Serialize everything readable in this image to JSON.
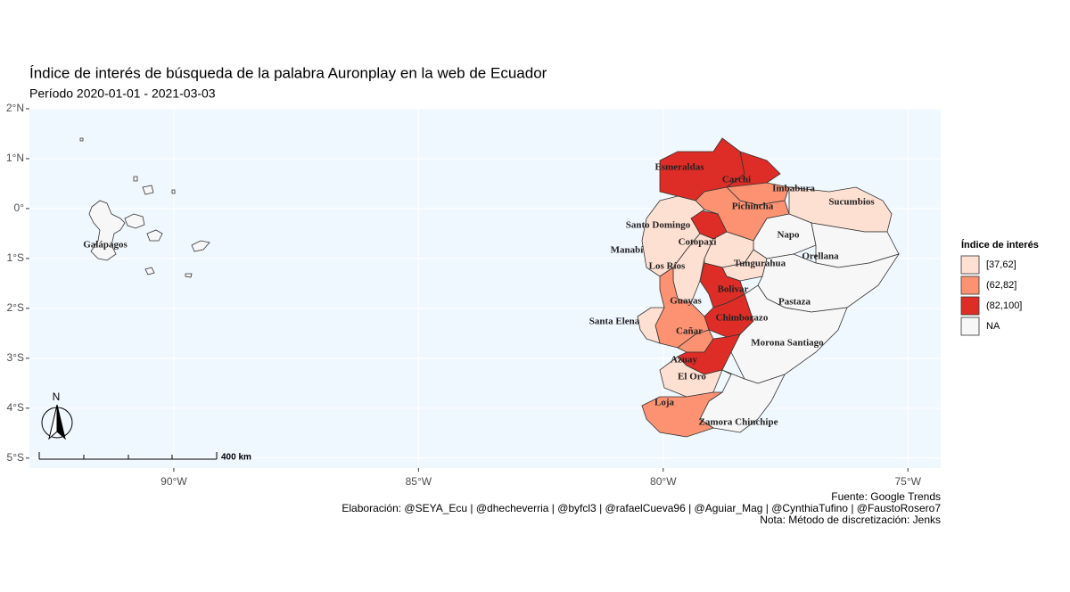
{
  "map": {
    "type": "choropleth",
    "title": "Índice de interés de búsqueda de la palabra Auronplay en la web de Ecuador",
    "subtitle": "Período 2020-01-01 - 2021-03-03",
    "xlim": [
      -92.95,
      -74.33
    ],
    "ylim": [
      -5.2,
      2.0
    ],
    "xticks": [
      {
        "value": -90,
        "label": "90°W"
      },
      {
        "value": -85,
        "label": "85°W"
      },
      {
        "value": -80,
        "label": "80°W"
      },
      {
        "value": -75,
        "label": "75°W"
      }
    ],
    "yticks": [
      {
        "value": 2,
        "label": "2°N"
      },
      {
        "value": 1,
        "label": "1°N"
      },
      {
        "value": 0,
        "label": "0°"
      },
      {
        "value": -1,
        "label": "1°S"
      },
      {
        "value": -2,
        "label": "2°S"
      },
      {
        "value": -3,
        "label": "3°S"
      },
      {
        "value": -4,
        "label": "4°S"
      },
      {
        "value": -5,
        "label": "5°S"
      }
    ],
    "grid": true,
    "legend": {
      "title": "Índice de interés",
      "items": [
        {
          "label": "[37,62]",
          "color": "#fee0d2"
        },
        {
          "label": "(62,82]",
          "color": "#fc9272"
        },
        {
          "label": "(82,100]",
          "color": "#de2d26"
        },
        {
          "label": "NA",
          "color": "#f7f7f7"
        }
      ]
    },
    "provinces": [
      {
        "name": "Galápagos",
        "color": "#f7f7f7"
      },
      {
        "name": "Esmeraldas",
        "color": "#de2d26"
      },
      {
        "name": "Carchi",
        "color": "#de2d26"
      },
      {
        "name": "Imbabura",
        "color": "#fc9272"
      },
      {
        "name": "Pichincha",
        "color": "#fc9272"
      },
      {
        "name": "Santo Domingo",
        "color": "#de2d26"
      },
      {
        "name": "Sucumbios",
        "color": "#fee0d2"
      },
      {
        "name": "Napo",
        "color": "#f7f7f7"
      },
      {
        "name": "Orellana",
        "color": "#f7f7f7"
      },
      {
        "name": "Manabí",
        "color": "#fee0d2"
      },
      {
        "name": "Los Ríos",
        "color": "#fee0d2"
      },
      {
        "name": "Cotopaxi",
        "color": "#fee0d2"
      },
      {
        "name": "Tungurahua",
        "color": "#fee0d2"
      },
      {
        "name": "Pastaza",
        "color": "#f7f7f7"
      },
      {
        "name": "Bolivar",
        "color": "#de2d26"
      },
      {
        "name": "Chimborazo",
        "color": "#de2d26"
      },
      {
        "name": "Guayas",
        "color": "#fc9272"
      },
      {
        "name": "Santa Elena",
        "color": "#fee0d2"
      },
      {
        "name": "Cañar",
        "color": "#fc9272"
      },
      {
        "name": "Azuay",
        "color": "#de2d26"
      },
      {
        "name": "Morona Santiago",
        "color": "#f7f7f7"
      },
      {
        "name": "Zamora Chinchipe",
        "color": "#f7f7f7"
      },
      {
        "name": "El Oro",
        "color": "#fee0d2"
      },
      {
        "name": "Loja",
        "color": "#fc9272"
      }
    ],
    "north_label": "N",
    "scale_label": "400 km",
    "caption": [
      "Fuente: Google Trends",
      "Elaboración:  @SEYA_Ecu | @dhecheverria | @byfcl3 | @rafaelCueva96 | @Aguiar_Mag | @CynthiaTufino | @FaustoRosero7",
      "Nota: Método de discretización: Jenks"
    ]
  }
}
